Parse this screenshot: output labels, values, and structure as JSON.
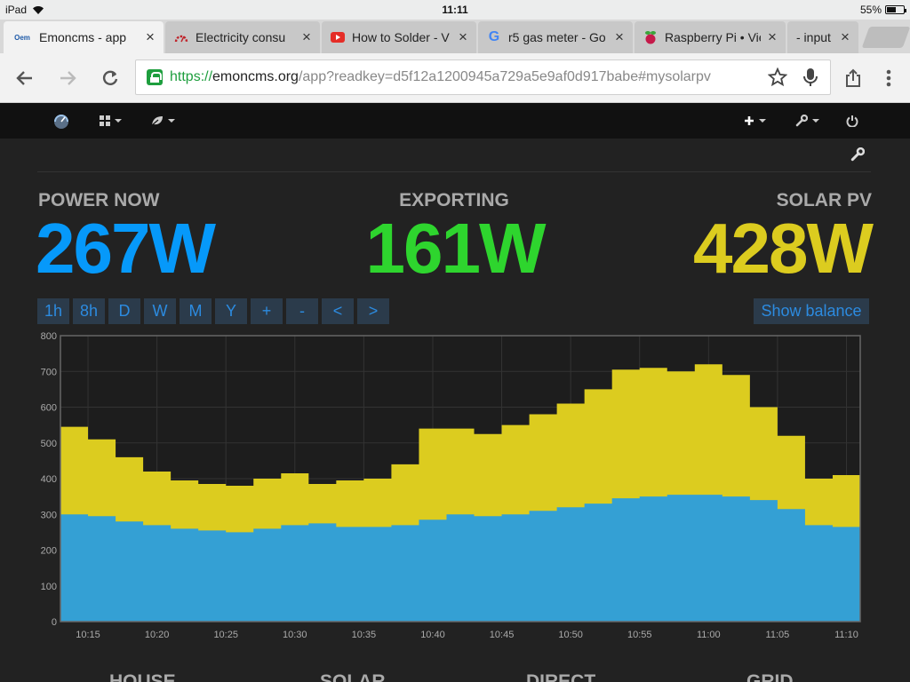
{
  "status_bar": {
    "device": "iPad",
    "time": "11:11",
    "battery": "55%",
    "battery_level": 0.55
  },
  "tabs": [
    {
      "title": "Emoncms - app",
      "favicon": "Oem",
      "active": true
    },
    {
      "title": "Electricity consu",
      "favicon": "gauge-icon",
      "active": false
    },
    {
      "title": "How to Solder - V",
      "favicon": "youtube-icon",
      "active": false
    },
    {
      "title": "r5 gas meter - Go",
      "favicon": "google-icon",
      "active": false
    },
    {
      "title": "Raspberry Pi • Vie",
      "favicon": "raspberry-icon",
      "active": false
    },
    {
      "title": "- input",
      "favicon": "",
      "active": false
    }
  ],
  "address_bar": {
    "scheme": "https://",
    "host": "emoncms.org",
    "path": "/app?readkey=d5f12a1200945a729a5e9af0d917babe#mysolarpv"
  },
  "stats": {
    "power_now": {
      "label": "POWER NOW",
      "value": "267W",
      "color": "#0699fa"
    },
    "exporting": {
      "label": "EXPORTING",
      "value": "161W",
      "color": "#2ed52e"
    },
    "solar_pv": {
      "label": "SOLAR PV",
      "value": "428W",
      "color": "#dccc1f"
    }
  },
  "range_buttons": [
    "1h",
    "8h",
    "D",
    "W",
    "M",
    "Y",
    "+",
    "-",
    "<",
    ">"
  ],
  "balance_button": "Show balance",
  "summary_labels": [
    "HOUSE",
    "SOLAR",
    "DIRECT",
    "GRID"
  ],
  "chart_data": {
    "type": "area",
    "xlabel": "",
    "ylabel": "",
    "ylim": [
      0,
      800
    ],
    "yticks": [
      "800",
      "700",
      "600",
      "500",
      "400",
      "300",
      "200",
      "100",
      "0"
    ],
    "xticks": [
      "10:15",
      "10:20",
      "10:25",
      "10:30",
      "10:35",
      "10:40",
      "10:45",
      "10:50",
      "10:55",
      "11:00",
      "11:05",
      "11:10"
    ],
    "x": [
      "10:13",
      "10:15",
      "10:17",
      "10:19",
      "10:21",
      "10:23",
      "10:25",
      "10:27",
      "10:29",
      "10:31",
      "10:33",
      "10:35",
      "10:37",
      "10:39",
      "10:41",
      "10:43",
      "10:45",
      "10:47",
      "10:49",
      "10:51",
      "10:53",
      "10:55",
      "10:57",
      "10:59",
      "11:01",
      "11:03",
      "11:05",
      "11:07",
      "11:09",
      "11:11"
    ],
    "grid": true,
    "colors": {
      "house": "#34a0d4",
      "solar": "#dccc1f"
    },
    "series": [
      {
        "values": [
          300,
          295,
          280,
          270,
          260,
          255,
          250,
          260,
          270,
          275,
          265,
          265,
          270,
          285,
          300,
          295,
          300,
          310,
          320,
          330,
          345,
          350,
          355,
          355,
          350,
          340,
          315,
          270,
          265,
          270
        ]
      },
      {
        "values": [
          545,
          510,
          460,
          420,
          395,
          385,
          380,
          400,
          415,
          385,
          395,
          400,
          440,
          540,
          540,
          525,
          550,
          580,
          610,
          650,
          705,
          710,
          700,
          720,
          690,
          600,
          520,
          400,
          410,
          425
        ]
      }
    ]
  }
}
